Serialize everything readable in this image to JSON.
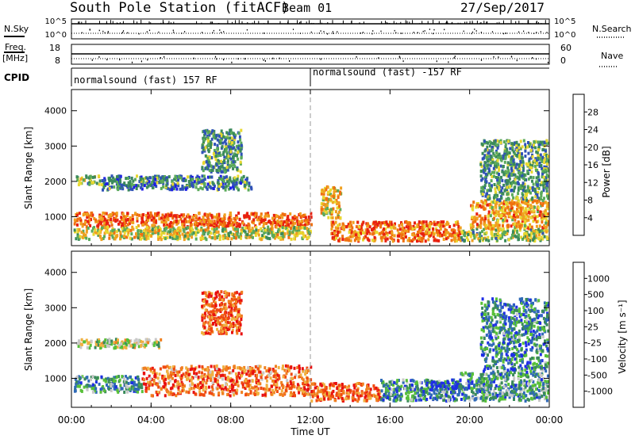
{
  "header": {
    "station": "South Pole Station (fitACF)",
    "beam": "Beam 01",
    "date": "27/Sep/2017"
  },
  "top_panels": {
    "nsky_label": "N.Sky",
    "nsearch_label": "N.Search",
    "nsky_ticks": [
      "10^5",
      "10^0"
    ],
    "nsky_right_ticks": [
      "10^5",
      "10^0"
    ],
    "freq_label_lines": [
      "Freq.",
      "[MHz]"
    ],
    "freq_ticks": [
      "18",
      "8"
    ],
    "nave_label": "Nave",
    "nave_ticks": [
      "60",
      "0"
    ],
    "cpid_label": "CPID",
    "cpid_segments": [
      "normalsound (fast) 157 RF",
      "normalsound (fast) -157 RF"
    ]
  },
  "chart_data": [
    {
      "type": "heatmap",
      "title": "",
      "xlabel": "",
      "ylabel": "Slant Range [km]",
      "x_ticks": [
        "00:00",
        "04:00",
        "08:00",
        "12:00",
        "16:00",
        "20:00",
        "00:00"
      ],
      "xlim_hours": [
        0,
        24
      ],
      "y_ticks": [
        "1000",
        "2000",
        "3000",
        "4000"
      ],
      "ylim": [
        180,
        4600
      ],
      "colorbar_label": "Power [dB]",
      "colorbar_ticks": [
        "4",
        "8",
        "12",
        "16",
        "20",
        "24",
        "28"
      ],
      "colorbar_range": [
        0,
        32
      ],
      "colors": [
        "#1e1ee6",
        "#2f52b7",
        "#3b8a5a",
        "#5aaa5a",
        "#e8d830",
        "#f0a020",
        "#f07010",
        "#e82010"
      ],
      "scatter_regions": [
        {
          "t0": 0.1,
          "t1": 12.0,
          "r0": 750,
          "r1": 1150,
          "level": 0.85
        },
        {
          "t0": 0.1,
          "t1": 12.0,
          "r0": 400,
          "r1": 750,
          "level": 0.55
        },
        {
          "t0": 0.2,
          "t1": 1.5,
          "r0": 1950,
          "r1": 2200,
          "level": 0.45
        },
        {
          "t0": 1.5,
          "t1": 9.0,
          "r0": 1800,
          "r1": 2200,
          "level": 0.3
        },
        {
          "t0": 6.5,
          "t1": 8.5,
          "r0": 2300,
          "r1": 3500,
          "level": 0.35
        },
        {
          "t0": 12.5,
          "t1": 13.5,
          "r0": 1000,
          "r1": 1900,
          "level": 0.65
        },
        {
          "t0": 13.0,
          "t1": 19.5,
          "r0": 350,
          "r1": 900,
          "level": 0.8
        },
        {
          "t0": 19.5,
          "t1": 23.9,
          "r0": 350,
          "r1": 700,
          "level": 0.45
        },
        {
          "t0": 20.0,
          "t1": 23.9,
          "r0": 700,
          "r1": 1500,
          "level": 0.7
        },
        {
          "t0": 20.5,
          "t1": 23.9,
          "r0": 1500,
          "r1": 3200,
          "level": 0.35
        }
      ]
    },
    {
      "type": "heatmap",
      "title": "",
      "xlabel": "Time UT",
      "ylabel": "Slant Range [km]",
      "x_ticks": [
        "00:00",
        "04:00",
        "08:00",
        "12:00",
        "16:00",
        "20:00",
        "00:00"
      ],
      "xlim_hours": [
        0,
        24
      ],
      "y_ticks": [
        "1000",
        "2000",
        "3000",
        "4000"
      ],
      "ylim": [
        180,
        4600
      ],
      "colorbar_label": "Velocity [m s⁻¹]",
      "colorbar_ticks": [
        "1000",
        "500",
        "100",
        "25",
        "-25",
        "-100",
        "-500",
        "-1000"
      ],
      "colorbar_range": [
        -1200,
        1200
      ],
      "colors": [
        "#e81010",
        "#f04a10",
        "#f08020",
        "#f0b040",
        "#c8c8c8",
        "#58c038",
        "#3a8a5a",
        "#2f6ab7",
        "#1e2ee6"
      ],
      "scatter_regions": [
        {
          "t0": 0.1,
          "t1": 3.5,
          "r0": 650,
          "r1": 1100,
          "level": 0.7
        },
        {
          "t0": 3.5,
          "t1": 12.0,
          "r0": 550,
          "r1": 1400,
          "level": 0.25
        },
        {
          "t0": 0.2,
          "t1": 4.5,
          "r0": 1900,
          "r1": 2150,
          "level": 0.5
        },
        {
          "t0": 6.5,
          "t1": 8.5,
          "r0": 2300,
          "r1": 3500,
          "level": 0.2
        },
        {
          "t0": 12.0,
          "t1": 15.5,
          "r0": 400,
          "r1": 900,
          "level": 0.2
        },
        {
          "t0": 15.5,
          "t1": 19.5,
          "r0": 400,
          "r1": 1000,
          "level": 0.75
        },
        {
          "t0": 18.0,
          "t1": 19.5,
          "r0": 700,
          "r1": 950,
          "level": 0.9
        },
        {
          "t0": 19.5,
          "t1": 23.9,
          "r0": 400,
          "r1": 1200,
          "level": 0.7
        },
        {
          "t0": 20.5,
          "t1": 23.9,
          "r0": 1200,
          "r1": 3300,
          "level": 0.75
        }
      ]
    }
  ]
}
